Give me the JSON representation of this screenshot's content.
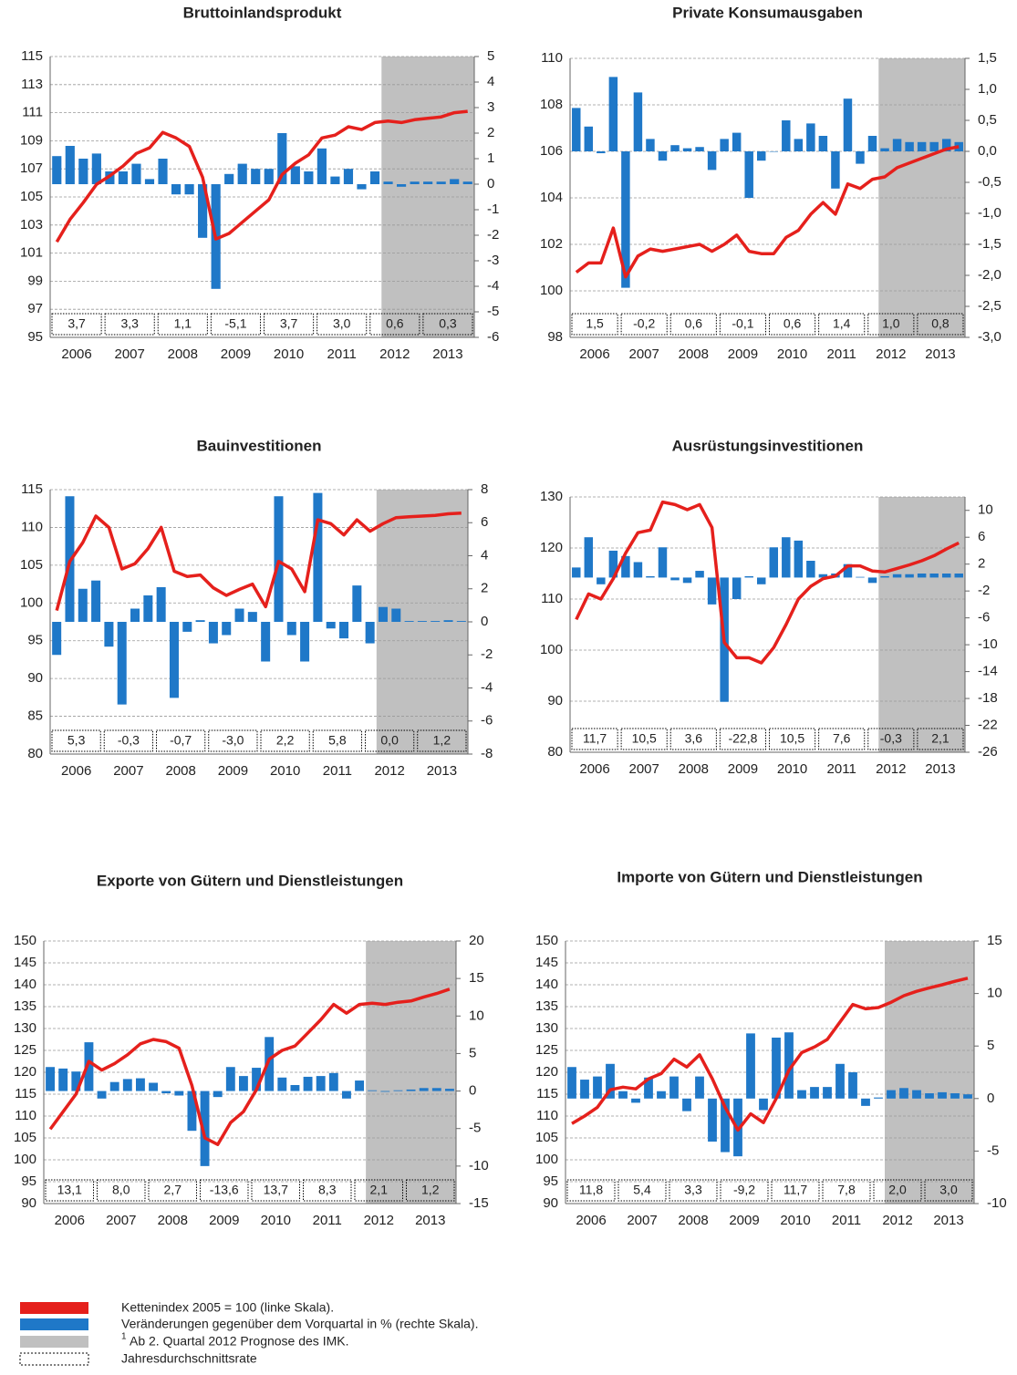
{
  "chart_data": [
    {
      "type": "combo",
      "title": "Bruttoinlandsprodukt",
      "categories": [
        null,
        "2006",
        null,
        null,
        null,
        "2007",
        null,
        null,
        null,
        "2008",
        null,
        null,
        null,
        "2009",
        null,
        null,
        null,
        "2010",
        null,
        null,
        null,
        "2011",
        null,
        null,
        null,
        "2012",
        null,
        null,
        null,
        "2013",
        null,
        null
      ],
      "series": [
        {
          "type": "bar",
          "axis": "y2",
          "color": "#1f78c8",
          "values": [
            1.1,
            1.5,
            1.0,
            1.2,
            0.5,
            0.5,
            0.8,
            0.2,
            1.0,
            -0.4,
            -0.4,
            -2.1,
            -4.1,
            0.4,
            0.8,
            0.6,
            0.6,
            2.0,
            0.7,
            0.5,
            1.4,
            0.3,
            0.6,
            -0.2,
            0.5,
            0.1,
            -0.1,
            0.1,
            0.1,
            0.1,
            0.2,
            0.1
          ]
        },
        {
          "type": "line",
          "color": "#e5201c",
          "values": [
            101.8,
            103.4,
            104.6,
            105.9,
            106.5,
            107.2,
            108.1,
            108.5,
            109.6,
            109.2,
            108.6,
            106.4,
            102.0,
            102.4,
            103.2,
            104.0,
            104.8,
            106.6,
            107.4,
            108.0,
            109.2,
            109.4,
            110.0,
            109.8,
            110.3,
            110.4,
            110.3,
            110.5,
            110.6,
            110.7,
            111.0,
            111.1
          ]
        }
      ],
      "annual_rates": [
        {
          "value": 3.7,
          "label": "3,7"
        },
        {
          "value": 3.3,
          "label": "3,3"
        },
        {
          "value": 1.1,
          "label": "1,1"
        },
        {
          "value": -5.1,
          "label": "-5,1"
        },
        {
          "value": 3.7,
          "label": "3,7"
        },
        {
          "value": 3.0,
          "label": "3,0"
        },
        {
          "value": 0.6,
          "label": "0,6"
        },
        {
          "value": 0.3,
          "label": "0,3"
        }
      ],
      "ylim": [
        95,
        115
      ],
      "yticks": [
        95,
        97,
        99,
        101,
        103,
        105,
        107,
        109,
        111,
        113,
        115
      ],
      "y2lim": [
        -6,
        5
      ],
      "y2ticks": [
        -6,
        -5,
        -4,
        -3,
        -2,
        -1,
        0,
        1,
        2,
        3,
        4,
        5
      ],
      "shade_from": 25,
      "shade_color": "#c0c0c0",
      "grid": true
    },
    {
      "type": "combo",
      "title": "Private Konsumausgaben",
      "categories": [
        null,
        "2006",
        null,
        null,
        null,
        "2007",
        null,
        null,
        null,
        "2008",
        null,
        null,
        null,
        "2009",
        null,
        null,
        null,
        "2010",
        null,
        null,
        null,
        "2011",
        null,
        null,
        null,
        "2012",
        null,
        null,
        null,
        "2013",
        null,
        null
      ],
      "series": [
        {
          "type": "bar",
          "axis": "y2",
          "color": "#1f78c8",
          "values": [
            0.7,
            0.4,
            -0.03,
            1.2,
            -2.2,
            0.95,
            0.2,
            -0.15,
            0.1,
            0.05,
            0.07,
            -0.3,
            0.2,
            0.3,
            -0.75,
            -0.15,
            0,
            0.5,
            0.2,
            0.45,
            0.25,
            -0.6,
            0.85,
            -0.2,
            0.25,
            0.05,
            0.2,
            0.15,
            0.15,
            0.15,
            0.2,
            0.15
          ]
        },
        {
          "type": "line",
          "color": "#e5201c",
          "values": [
            100.8,
            101.2,
            101.2,
            102.7,
            100.6,
            101.5,
            101.8,
            101.7,
            101.8,
            101.9,
            102.0,
            101.7,
            102.0,
            102.4,
            101.7,
            101.6,
            101.6,
            102.3,
            102.6,
            103.3,
            103.8,
            103.3,
            104.6,
            104.4,
            104.8,
            104.9,
            105.3,
            105.5,
            105.7,
            105.9,
            106.1,
            106.2
          ]
        }
      ],
      "annual_rates": [
        {
          "value": 1.5,
          "label": "1,5"
        },
        {
          "value": -0.2,
          "label": "-0,2"
        },
        {
          "value": 0.6,
          "label": "0,6"
        },
        {
          "value": -0.1,
          "label": "-0,1"
        },
        {
          "value": 0.6,
          "label": "0,6"
        },
        {
          "value": 1.4,
          "label": "1,4"
        },
        {
          "value": 1.0,
          "label": "1,0"
        },
        {
          "value": 0.8,
          "label": "0,8"
        }
      ],
      "ylim": [
        98,
        110
      ],
      "yticks": [
        98,
        100,
        102,
        104,
        106,
        108,
        110
      ],
      "y2lim": [
        -3,
        1.5
      ],
      "y2ticks": [
        {
          "value": -3,
          "label": "-3,0"
        },
        {
          "value": -2.5,
          "label": "-2,5"
        },
        {
          "value": -2,
          "label": "-2,0"
        },
        {
          "value": -1.5,
          "label": "-1,5"
        },
        {
          "value": -1,
          "label": "-1,0"
        },
        {
          "value": -0.5,
          "label": "-0,5"
        },
        {
          "value": 0,
          "label": "0,0"
        },
        {
          "value": 0.5,
          "label": "0,5"
        },
        {
          "value": 1,
          "label": "1,0"
        },
        {
          "value": 1.5,
          "label": "1,5"
        }
      ],
      "shade_from": 25,
      "shade_color": "#c0c0c0",
      "grid": true
    },
    {
      "type": "combo",
      "title": "Bauinvestitionen",
      "categories": [
        null,
        "2006",
        null,
        null,
        null,
        "2007",
        null,
        null,
        null,
        "2008",
        null,
        null,
        null,
        "2009",
        null,
        null,
        null,
        "2010",
        null,
        null,
        null,
        "2011",
        null,
        null,
        null,
        "2012",
        null,
        null,
        null,
        "2013",
        null,
        null
      ],
      "series": [
        {
          "type": "bar",
          "axis": "y2",
          "color": "#1f78c8",
          "values": [
            -2.0,
            7.6,
            2.0,
            2.5,
            -1.5,
            -5.0,
            0.8,
            1.6,
            2.1,
            -4.6,
            -0.6,
            0.1,
            -1.3,
            -0.8,
            0.8,
            0.6,
            -2.4,
            7.6,
            -0.8,
            -2.4,
            7.8,
            -0.4,
            -1.0,
            2.2,
            -1.3,
            0.9,
            0.8,
            0.05,
            0.05,
            0.05,
            0.1,
            0.05
          ]
        },
        {
          "type": "line",
          "color": "#e5201c",
          "values": [
            99.0,
            105.5,
            108.0,
            111.5,
            110.0,
            104.5,
            105.2,
            107.2,
            110.0,
            104.2,
            103.5,
            103.7,
            102.0,
            101.0,
            101.8,
            102.5,
            99.5,
            105.5,
            104.5,
            101.5,
            111.0,
            110.5,
            109.0,
            111.0,
            109.5,
            110.5,
            111.3,
            111.4,
            111.5,
            111.6,
            111.8,
            111.9
          ]
        }
      ],
      "annual_rates": [
        {
          "value": 5.3,
          "label": "5,3"
        },
        {
          "value": -0.3,
          "label": "-0,3"
        },
        {
          "value": -0.7,
          "label": "-0,7"
        },
        {
          "value": -3.0,
          "label": "-3,0"
        },
        {
          "value": 2.2,
          "label": "2,2"
        },
        {
          "value": 5.8,
          "label": "5,8"
        },
        {
          "value": 0.0,
          "label": "0,0"
        },
        {
          "value": 1.2,
          "label": "1,2"
        }
      ],
      "ylim": [
        80,
        115
      ],
      "yticks": [
        80,
        85,
        90,
        95,
        100,
        105,
        110,
        115
      ],
      "y2lim": [
        -8,
        8
      ],
      "y2ticks": [
        -8,
        -6,
        -4,
        -2,
        0,
        2,
        4,
        6,
        8
      ],
      "shade_from": 25,
      "shade_color": "#c0c0c0",
      "grid": true
    },
    {
      "type": "combo",
      "title": "Ausrüstungsinvestitionen",
      "categories": [
        null,
        "2006",
        null,
        null,
        null,
        "2007",
        null,
        null,
        null,
        "2008",
        null,
        null,
        null,
        "2009",
        null,
        null,
        null,
        "2010",
        null,
        null,
        null,
        "2011",
        null,
        null,
        null,
        "2012",
        null,
        null,
        null,
        "2013",
        null,
        null
      ],
      "series": [
        {
          "type": "bar",
          "axis": "y2",
          "color": "#1f78c8",
          "values": [
            1.5,
            6.0,
            -1.0,
            4.0,
            3.2,
            2.3,
            0.2,
            4.5,
            -0.4,
            -0.8,
            1.0,
            -4.0,
            -18.5,
            -3.2,
            0.2,
            -1.0,
            4.5,
            6.0,
            5.5,
            2.5,
            0.5,
            0.6,
            2.0,
            0.1,
            -0.8,
            0.2,
            0.5,
            0.5,
            0.6,
            0.6,
            0.6,
            0.6
          ]
        },
        {
          "type": "line",
          "color": "#e5201c",
          "values": [
            106.0,
            111.0,
            110.0,
            114.0,
            119.0,
            123.0,
            123.5,
            129.0,
            128.5,
            127.5,
            128.5,
            124.0,
            101.5,
            98.5,
            98.5,
            97.5,
            100.5,
            105.0,
            110.0,
            112.5,
            114.0,
            114.5,
            116.5,
            116.5,
            115.5,
            115.3,
            116.0,
            116.7,
            117.5,
            118.5,
            119.8,
            121.0
          ]
        }
      ],
      "annual_rates": [
        {
          "value": 11.7,
          "label": "11,7"
        },
        {
          "value": 10.5,
          "label": "10,5"
        },
        {
          "value": 3.6,
          "label": "3,6"
        },
        {
          "value": -22.8,
          "label": "-22,8"
        },
        {
          "value": 10.5,
          "label": "10,5"
        },
        {
          "value": 7.6,
          "label": "7,6"
        },
        {
          "value": -0.3,
          "label": "-0,3"
        },
        {
          "value": 2.1,
          "label": "2,1"
        }
      ],
      "ylim": [
        80,
        130
      ],
      "yticks": [
        80,
        90,
        100,
        110,
        120,
        130
      ],
      "y2lim": [
        -26,
        12
      ],
      "y2ticks": [
        -26,
        -22,
        -18,
        -14,
        -10,
        -6,
        -2,
        2,
        6,
        10
      ],
      "shade_from": 25,
      "shade_color": "#c0c0c0",
      "grid": true
    },
    {
      "type": "combo",
      "title": "Exporte von Gütern und Dienstleistungen",
      "categories": [
        null,
        "2006",
        null,
        null,
        null,
        "2007",
        null,
        null,
        null,
        "2008",
        null,
        null,
        null,
        "2009",
        null,
        null,
        null,
        "2010",
        null,
        null,
        null,
        "2011",
        null,
        null,
        null,
        "2012",
        null,
        null,
        null,
        "2013",
        null,
        null
      ],
      "series": [
        {
          "type": "bar",
          "axis": "y2",
          "color": "#1f78c8",
          "values": [
            3.2,
            3.0,
            2.6,
            6.5,
            -1.0,
            1.2,
            1.6,
            1.7,
            1.1,
            -0.3,
            -0.6,
            -5.3,
            -10.0,
            -0.8,
            3.2,
            2.0,
            3.1,
            7.2,
            1.8,
            0.8,
            1.9,
            2.0,
            2.4,
            -1.0,
            1.4,
            0.1,
            -0.1,
            0.1,
            0.2,
            0.4,
            0.4,
            0.3
          ]
        },
        {
          "type": "line",
          "color": "#e5201c",
          "values": [
            107.0,
            111.0,
            115.0,
            122.5,
            120.5,
            122.0,
            124.0,
            126.5,
            127.5,
            127.0,
            125.5,
            117.0,
            105.0,
            103.5,
            108.5,
            111.0,
            116.0,
            123.0,
            125.0,
            126.0,
            129.0,
            132.0,
            135.5,
            133.5,
            135.5,
            135.8,
            135.5,
            136.0,
            136.3,
            137.2,
            138.0,
            139.0
          ]
        }
      ],
      "annual_rates": [
        {
          "value": 13.1,
          "label": "13,1"
        },
        {
          "value": 8.0,
          "label": "8,0"
        },
        {
          "value": 2.7,
          "label": "2,7"
        },
        {
          "value": -13.6,
          "label": "-13,6"
        },
        {
          "value": 13.7,
          "label": "13,7"
        },
        {
          "value": 8.3,
          "label": "8,3"
        },
        {
          "value": 2.1,
          "label": "2,1"
        },
        {
          "value": 1.2,
          "label": "1,2"
        }
      ],
      "ylim": [
        90,
        150
      ],
      "yticks": [
        90,
        95,
        100,
        105,
        110,
        115,
        120,
        125,
        130,
        135,
        140,
        145,
        150
      ],
      "y2lim": [
        -15,
        20
      ],
      "y2ticks": [
        -15,
        -10,
        -5,
        0,
        5,
        10,
        15,
        20
      ],
      "shade_from": 25,
      "shade_color": "#c0c0c0",
      "grid": true
    },
    {
      "type": "combo",
      "title": "Importe von Gütern und Dienstleistungen",
      "categories": [
        null,
        "2006",
        null,
        null,
        null,
        "2007",
        null,
        null,
        null,
        "2008",
        null,
        null,
        null,
        "2009",
        null,
        null,
        null,
        "2010",
        null,
        null,
        null,
        "2011",
        null,
        null,
        null,
        "2012",
        null,
        null,
        null,
        "2013",
        null,
        null
      ],
      "series": [
        {
          "type": "bar",
          "axis": "y2",
          "color": "#1f78c8",
          "values": [
            3.0,
            1.8,
            2.1,
            3.3,
            0.7,
            -0.4,
            2.0,
            0.7,
            2.1,
            -1.2,
            2.1,
            -4.1,
            -5.1,
            -5.5,
            6.2,
            -1.1,
            5.8,
            6.3,
            0.8,
            1.1,
            1.1,
            3.3,
            2.5,
            -0.7,
            0.1,
            0.8,
            1.0,
            0.8,
            0.5,
            0.6,
            0.5,
            0.4
          ]
        },
        {
          "type": "line",
          "color": "#e5201c",
          "values": [
            108.3,
            110.0,
            112.0,
            116.0,
            116.6,
            116.2,
            118.5,
            119.7,
            123.0,
            121.2,
            124.0,
            118.5,
            112.0,
            106.8,
            110.5,
            108.5,
            114.0,
            120.5,
            124.5,
            125.8,
            127.5,
            131.5,
            135.5,
            134.5,
            134.8,
            136.0,
            137.5,
            138.5,
            139.3,
            140.0,
            140.8,
            141.5
          ]
        }
      ],
      "annual_rates": [
        {
          "value": 11.8,
          "label": "11,8"
        },
        {
          "value": 5.4,
          "label": "5,4"
        },
        {
          "value": 3.3,
          "label": "3,3"
        },
        {
          "value": -9.2,
          "label": "-9,2"
        },
        {
          "value": 11.7,
          "label": "11,7"
        },
        {
          "value": 7.8,
          "label": "7,8"
        },
        {
          "value": 2.0,
          "label": "2,0"
        },
        {
          "value": 3.0,
          "label": "3,0"
        }
      ],
      "ylim": [
        90,
        150
      ],
      "yticks": [
        90,
        95,
        100,
        105,
        110,
        115,
        120,
        125,
        130,
        135,
        140,
        145,
        150
      ],
      "y2lim": [
        -10,
        15
      ],
      "y2ticks": [
        -10,
        -5,
        0,
        5,
        10,
        15
      ],
      "shade_from": 25,
      "shade_color": "#c0c0c0",
      "grid": true
    }
  ],
  "legend": [
    {
      "label": "Kettenindex 2005 = 100 (linke Skala).",
      "color": "#e5201c"
    },
    {
      "label": "Veränderungen gegenüber dem Vorquartal in % (rechte Skala).",
      "color": "#1f78c8"
    },
    {
      "label": "Ab 2. Quartal 2012 Prognose des IMK.",
      "marker": "1",
      "color": "#c0c0c0"
    },
    {
      "label": "Jahresdurchschnittsrate",
      "border": "dotted"
    }
  ]
}
